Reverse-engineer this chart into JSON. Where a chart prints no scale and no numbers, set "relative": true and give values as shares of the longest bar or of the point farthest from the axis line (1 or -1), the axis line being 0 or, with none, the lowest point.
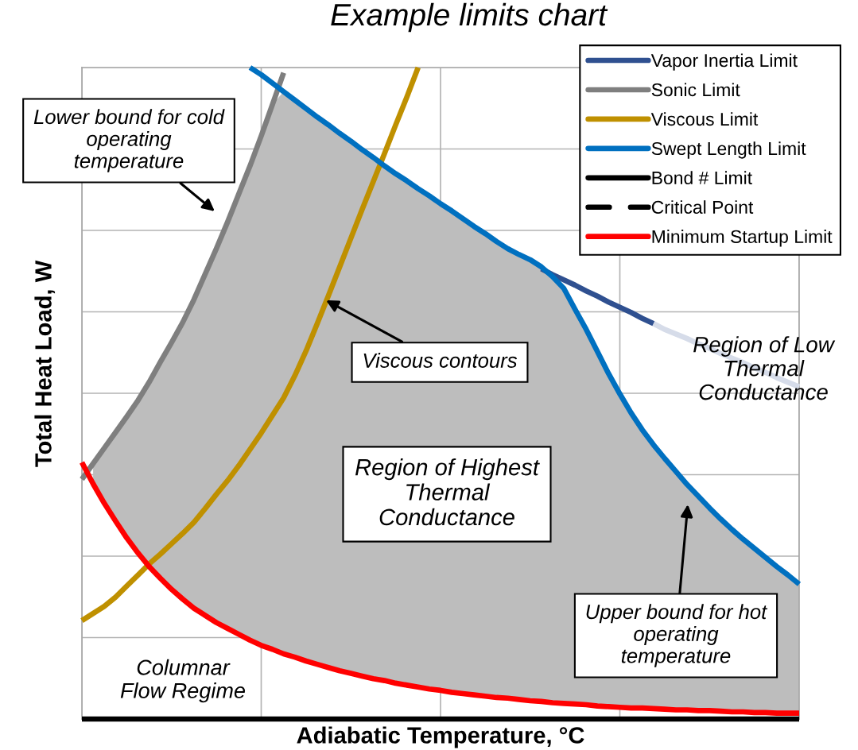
{
  "chart_data": {
    "type": "line",
    "title": "Example limits chart",
    "xlabel": "Adiabatic Temperature, °C",
    "ylabel": "Total Heat Load, W",
    "relative": true,
    "grid": true,
    "legend": "top right",
    "categories": [
      null,
      null,
      null,
      null,
      null,
      null,
      null,
      null,
      null,
      null,
      null,
      null,
      null,
      null,
      null,
      null,
      null,
      null,
      null,
      null,
      null,
      null,
      null,
      null,
      null,
      null,
      null,
      null,
      null,
      null,
      null,
      null,
      null,
      null,
      null,
      null,
      null,
      null,
      null,
      null,
      null,
      null,
      null,
      null,
      null,
      null,
      null,
      null,
      null,
      null,
      null,
      null,
      null,
      null,
      null,
      null,
      null,
      null,
      null,
      null,
      null,
      null,
      null,
      null,
      null
    ],
    "series": [
      {
        "color": "#d6dce9",
        "values": [
          null,
          null,
          null,
          null,
          null,
          null,
          null,
          null,
          null,
          null,
          null,
          null,
          null,
          null,
          null,
          null,
          null,
          null,
          null,
          null,
          null,
          null,
          null,
          null,
          null,
          null,
          null,
          null,
          null,
          null,
          null,
          null,
          null,
          null,
          null,
          null,
          null,
          null,
          null,
          null,
          null,
          null,
          null,
          null,
          null,
          null,
          null,
          null,
          null,
          null,
          null,
          0.607,
          0.598,
          0.591,
          0.584,
          0.576,
          0.569,
          0.561,
          0.554,
          0.547,
          0.539,
          0.532,
          0.524,
          0.517,
          0.51
        ]
      },
      {
        "name": "Vapor Inertia Limit",
        "color": "#2f5090",
        "values": [
          null,
          null,
          null,
          null,
          null,
          null,
          null,
          null,
          null,
          null,
          null,
          null,
          null,
          null,
          null,
          null,
          null,
          null,
          null,
          null,
          null,
          null,
          null,
          null,
          null,
          null,
          null,
          null,
          null,
          null,
          null,
          null,
          null,
          null,
          null,
          null,
          null,
          null,
          null,
          null,
          null,
          0.691,
          0.682,
          0.674,
          0.666,
          0.657,
          0.649,
          0.64,
          0.632,
          0.624,
          0.615,
          0.607,
          null,
          null,
          null,
          null,
          null,
          null,
          null,
          null,
          null,
          null,
          null,
          null,
          null
        ]
      },
      {
        "name": "Sonic Limit",
        "color": "#7f7f7f",
        "values": [
          0.368,
          0.392,
          0.416,
          0.44,
          0.464,
          0.489,
          0.517,
          0.548,
          0.578,
          0.609,
          0.644,
          0.683,
          0.722,
          0.763,
          0.806,
          0.849,
          0.895,
          0.943,
          0.992,
          null,
          null,
          null,
          null,
          null,
          null,
          null,
          null,
          null,
          null,
          null,
          null,
          null,
          null,
          null,
          null,
          null,
          null,
          null,
          null,
          null,
          null,
          null,
          null,
          null,
          null,
          null,
          null,
          null,
          null,
          null,
          null,
          null,
          null,
          null,
          null,
          null,
          null,
          null,
          null,
          null,
          null,
          null,
          null,
          null,
          null
        ]
      },
      {
        "name": "Viscous Limit",
        "color": "#bf9000",
        "values": [
          0.151,
          0.162,
          0.173,
          0.187,
          0.204,
          0.221,
          0.238,
          0.253,
          0.269,
          0.285,
          0.302,
          0.323,
          0.345,
          0.366,
          0.389,
          0.414,
          0.439,
          0.466,
          0.493,
          0.527,
          0.565,
          0.607,
          0.65,
          0.694,
          0.738,
          0.782,
          0.825,
          0.868,
          0.912,
          0.955,
          1.0,
          null,
          null,
          null,
          null,
          null,
          null,
          null,
          null,
          null,
          null,
          null,
          null,
          null,
          null,
          null,
          null,
          null,
          null,
          null,
          null,
          null,
          null,
          null,
          null,
          null,
          null,
          null,
          null,
          null,
          null,
          null,
          null,
          null,
          null
        ]
      },
      {
        "name": "Swept Length Limit",
        "color": "#0070c0",
        "values": [
          null,
          null,
          null,
          null,
          null,
          null,
          null,
          null,
          null,
          null,
          null,
          null,
          null,
          null,
          null,
          1.0,
          0.989,
          0.976,
          0.963,
          0.95,
          0.937,
          0.924,
          0.912,
          0.899,
          0.887,
          0.874,
          0.862,
          0.849,
          0.837,
          0.826,
          0.814,
          0.803,
          0.791,
          0.78,
          0.768,
          0.756,
          0.745,
          0.733,
          0.722,
          0.713,
          0.705,
          0.694,
          0.679,
          0.661,
          0.629,
          0.598,
          0.564,
          0.53,
          0.499,
          0.47,
          0.444,
          0.421,
          0.4,
          0.38,
          0.36,
          0.342,
          0.324,
          0.307,
          0.291,
          0.276,
          0.262,
          0.248,
          0.234,
          0.221,
          0.207
        ]
      },
      {
        "name": "Bond # Limit",
        "color": "#000000",
        "values": [
          0,
          0,
          0,
          0,
          0,
          0,
          0,
          0,
          0,
          0,
          0,
          0,
          0,
          0,
          0,
          0,
          0,
          0,
          0,
          0,
          0,
          0,
          0,
          0,
          0,
          0,
          0,
          0,
          0,
          0,
          0,
          0,
          0,
          0,
          0,
          0,
          0,
          0,
          0,
          0,
          0,
          0,
          0,
          0,
          0,
          0,
          0,
          0,
          0,
          0,
          0,
          0,
          0,
          0,
          0,
          0,
          0,
          0,
          0,
          0,
          0,
          0,
          0,
          0,
          0
        ]
      },
      {
        "name": "Critical Point",
        "color": "#000000",
        "line_style": "dashed",
        "values": [
          null,
          null,
          null,
          null,
          null,
          null,
          null,
          null,
          null,
          null,
          null,
          null,
          null,
          null,
          null,
          null,
          null,
          null,
          null,
          null,
          null,
          null,
          null,
          null,
          null,
          null,
          null,
          null,
          null,
          null,
          null,
          null,
          null,
          null,
          null,
          null,
          null,
          null,
          null,
          null,
          null,
          null,
          null,
          null,
          null,
          null,
          null,
          null,
          null,
          null,
          null,
          null,
          null,
          null,
          null,
          null,
          null,
          null,
          null,
          null,
          null,
          null,
          null,
          null,
          null
        ]
      },
      {
        "name": "Minimum Startup Limit",
        "color": "#ff0000",
        "values": [
          0.394,
          0.361,
          0.331,
          0.304,
          0.278,
          0.255,
          0.234,
          0.216,
          0.199,
          0.184,
          0.17,
          0.159,
          0.148,
          0.139,
          0.13,
          0.121,
          0.113,
          0.107,
          0.1,
          0.095,
          0.089,
          0.084,
          0.079,
          0.074,
          0.07,
          0.066,
          0.062,
          0.059,
          0.055,
          0.052,
          0.049,
          0.046,
          0.044,
          0.041,
          0.039,
          0.037,
          0.035,
          0.033,
          0.032,
          0.03,
          0.028,
          0.027,
          0.025,
          0.024,
          0.023,
          0.022,
          0.02,
          0.019,
          0.018,
          0.017,
          0.017,
          0.016,
          0.015,
          0.014,
          0.014,
          0.013,
          0.013,
          0.012,
          0.011,
          0.011,
          0.01,
          0.01,
          0.009,
          0.009,
          0.009
        ],
        "lower": [
          null,
          0.361,
          0.331,
          0.304,
          0.278,
          0.255,
          0.234,
          0.216,
          0.199,
          0.184,
          0.17,
          0.159,
          0.148,
          0.139,
          0.13,
          0.121,
          0.113,
          0.107,
          0.1,
          0.095,
          0.089,
          0.084,
          0.079,
          0.074,
          0.07,
          0.066,
          0.062,
          0.059,
          0.055,
          0.052,
          0.049,
          0.046,
          0.044,
          0.041,
          0.039,
          0.037,
          0.035,
          0.033,
          0.032,
          0.03,
          0.028,
          0.027,
          0.025,
          0.024,
          0.023,
          0.022,
          0.02,
          0.019,
          0.018,
          0.017,
          0.017,
          0.016,
          0.015,
          0.014,
          0.014,
          0.013,
          0.013,
          0.012,
          0.011,
          0.011,
          0.01,
          0.01,
          0.009,
          0.009,
          0.009
        ],
        "upper": [
          null,
          0.392,
          0.416,
          0.44,
          0.464,
          0.489,
          0.517,
          0.548,
          0.578,
          0.609,
          0.644,
          0.683,
          0.722,
          0.763,
          0.806,
          0.849,
          0.895,
          0.943,
          0.963,
          0.95,
          0.937,
          0.924,
          0.912,
          0.899,
          0.887,
          0.874,
          0.862,
          0.849,
          0.837,
          0.826,
          0.814,
          0.803,
          0.791,
          0.78,
          0.768,
          0.756,
          0.745,
          0.733,
          0.722,
          0.713,
          0.705,
          0.694,
          0.679,
          0.661,
          0.629,
          0.598,
          0.564,
          0.53,
          0.499,
          0.47,
          0.444,
          0.421,
          0.4,
          0.38,
          0.36,
          0.342,
          0.324,
          0.307,
          0.291,
          0.276,
          0.262,
          0.248,
          0.234,
          0.221,
          0.207
        ]
      }
    ],
    "annotations": [
      "Lower bound for cold\noperating\ntemperature",
      "Viscous contours",
      "Region of Highest\nThermal\nConductance",
      "Upper bound for hot\noperating\ntemperature",
      "Columnar\nFlow Regime",
      "Region of Low\nThermal\nConductance"
    ]
  }
}
